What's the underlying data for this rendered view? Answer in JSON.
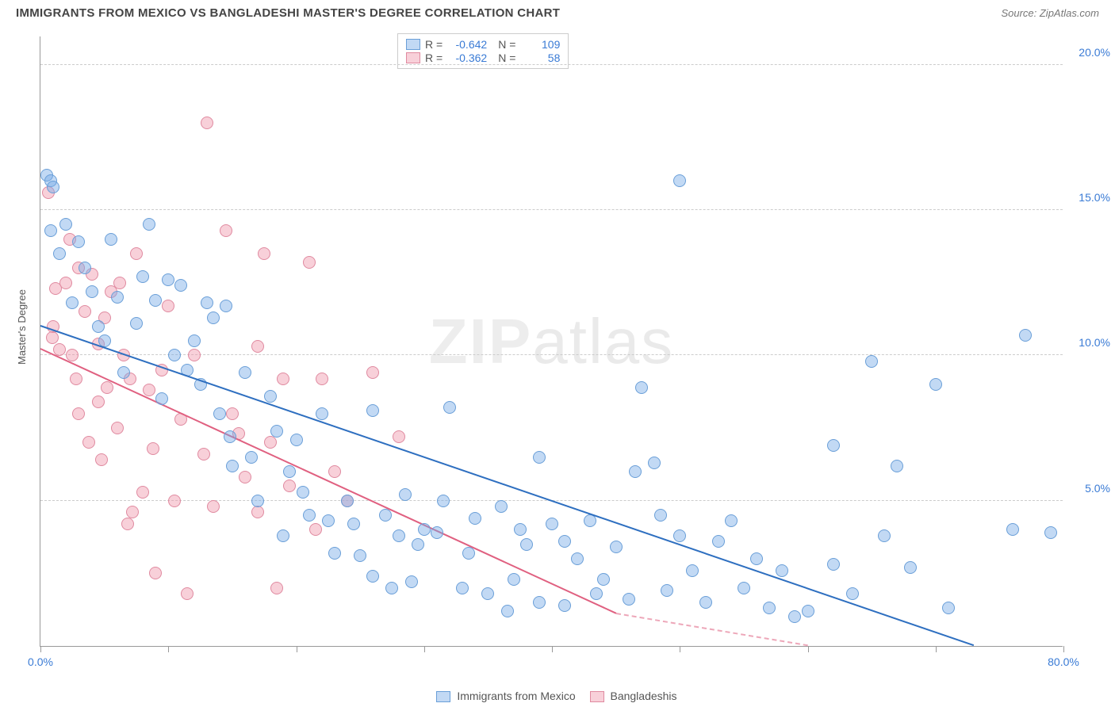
{
  "header": {
    "title": "IMMIGRANTS FROM MEXICO VS BANGLADESHI MASTER'S DEGREE CORRELATION CHART",
    "source_prefix": "Source: ",
    "source_name": "ZipAtlas.com"
  },
  "watermark": {
    "bold": "ZIP",
    "light": "atlas"
  },
  "axes": {
    "ylabel": "Master's Degree",
    "xlim": [
      0,
      80
    ],
    "ylim": [
      0,
      21
    ],
    "xtick_positions": [
      0,
      10,
      20,
      30,
      40,
      50,
      60,
      70,
      80
    ],
    "xtick_labels": {
      "0": "0.0%",
      "80": "80.0%"
    },
    "ytick_positions": [
      5,
      10,
      15,
      20
    ],
    "ytick_labels": {
      "5": "5.0%",
      "10": "10.0%",
      "15": "15.0%",
      "20": "20.0%"
    },
    "grid_color": "#cccccc",
    "tick_label_color": "#3a7bd5",
    "axis_label_color": "#555555"
  },
  "series": {
    "mexico": {
      "label": "Immigrants from Mexico",
      "fill": "rgba(120,170,230,0.45)",
      "stroke": "#6a9fd8",
      "line_color": "#2e6fc0",
      "marker_r": 8,
      "stats": {
        "R_label": "R =",
        "R": "-0.642",
        "N_label": "N =",
        "N": "109"
      },
      "trend": {
        "x1": 0,
        "y1": 11.0,
        "x2": 73,
        "y2": 0
      },
      "points": [
        [
          0.5,
          16.2
        ],
        [
          0.8,
          16.0
        ],
        [
          1.0,
          15.8
        ],
        [
          0.8,
          14.3
        ],
        [
          2.0,
          14.5
        ],
        [
          3.0,
          13.9
        ],
        [
          8.5,
          14.5
        ],
        [
          10.0,
          12.6
        ],
        [
          11.0,
          12.4
        ],
        [
          9.0,
          11.9
        ],
        [
          8.0,
          12.7
        ],
        [
          4.5,
          11.0
        ],
        [
          7.5,
          11.1
        ],
        [
          13.0,
          11.8
        ],
        [
          13.5,
          11.3
        ],
        [
          14.5,
          11.7
        ],
        [
          12.0,
          10.5
        ],
        [
          16.0,
          9.4
        ],
        [
          50.0,
          16.0
        ],
        [
          77.0,
          10.7
        ],
        [
          65.0,
          9.8
        ],
        [
          70.0,
          9.0
        ],
        [
          62.0,
          6.9
        ],
        [
          67.0,
          6.2
        ],
        [
          32.0,
          8.2
        ],
        [
          26.0,
          8.1
        ],
        [
          22.0,
          8.0
        ],
        [
          20.0,
          7.1
        ],
        [
          18.5,
          7.4
        ],
        [
          14.0,
          8.0
        ],
        [
          48.0,
          6.3
        ],
        [
          47.0,
          8.9
        ],
        [
          39.0,
          6.5
        ],
        [
          41.0,
          3.6
        ],
        [
          45.0,
          3.4
        ],
        [
          50.0,
          3.8
        ],
        [
          53.0,
          3.6
        ],
        [
          55.0,
          2.0
        ],
        [
          58.0,
          2.6
        ],
        [
          60.0,
          1.2
        ],
        [
          62.0,
          2.8
        ],
        [
          68.0,
          2.7
        ],
        [
          71.0,
          1.3
        ],
        [
          76.0,
          4.0
        ],
        [
          79.0,
          3.9
        ],
        [
          37.0,
          2.3
        ],
        [
          35.0,
          1.8
        ],
        [
          33.0,
          2.0
        ],
        [
          30.0,
          4.0
        ],
        [
          28.0,
          3.8
        ],
        [
          27.0,
          4.5
        ],
        [
          25.0,
          3.1
        ],
        [
          23.0,
          3.2
        ],
        [
          26.0,
          2.4
        ],
        [
          29.0,
          2.2
        ],
        [
          31.0,
          3.9
        ],
        [
          34.0,
          4.4
        ],
        [
          36.0,
          4.8
        ],
        [
          21.0,
          4.5
        ],
        [
          19.0,
          3.8
        ],
        [
          24.0,
          5.0
        ],
        [
          24.5,
          4.2
        ],
        [
          17.0,
          5.0
        ],
        [
          15.0,
          6.2
        ],
        [
          44.0,
          2.3
        ],
        [
          46.0,
          1.6
        ],
        [
          49.0,
          1.9
        ],
        [
          52.0,
          1.5
        ],
        [
          41.0,
          1.4
        ],
        [
          39.0,
          1.5
        ],
        [
          36.5,
          1.2
        ],
        [
          43.0,
          4.3
        ],
        [
          10.5,
          10.0
        ],
        [
          6.0,
          12.0
        ],
        [
          3.5,
          13.0
        ],
        [
          5.0,
          10.5
        ],
        [
          12.5,
          9.0
        ],
        [
          6.5,
          9.4
        ],
        [
          9.5,
          8.5
        ],
        [
          11.5,
          9.5
        ],
        [
          18.0,
          8.6
        ],
        [
          20.5,
          5.3
        ],
        [
          22.5,
          4.3
        ],
        [
          28.5,
          5.2
        ],
        [
          31.5,
          5.0
        ],
        [
          33.5,
          3.2
        ],
        [
          38.0,
          3.5
        ],
        [
          40.0,
          4.2
        ],
        [
          42.0,
          3.0
        ],
        [
          48.5,
          4.5
        ],
        [
          51.0,
          2.6
        ],
        [
          54.0,
          4.3
        ],
        [
          56.0,
          3.0
        ],
        [
          57.0,
          1.3
        ],
        [
          59.0,
          1.0
        ],
        [
          46.5,
          6.0
        ],
        [
          43.5,
          1.8
        ],
        [
          37.5,
          4.0
        ],
        [
          29.5,
          3.5
        ],
        [
          27.5,
          2.0
        ],
        [
          5.5,
          14.0
        ],
        [
          2.5,
          11.8
        ],
        [
          1.5,
          13.5
        ],
        [
          4.0,
          12.2
        ],
        [
          63.5,
          1.8
        ],
        [
          66.0,
          3.8
        ],
        [
          14.8,
          7.2
        ],
        [
          16.5,
          6.5
        ],
        [
          19.5,
          6.0
        ]
      ]
    },
    "bangla": {
      "label": "Bangladeshis",
      "fill": "rgba(240,150,170,0.45)",
      "stroke": "#e08aa0",
      "line_color": "#e06080",
      "marker_r": 8,
      "stats": {
        "R_label": "R =",
        "R": "-0.362",
        "N_label": "N =",
        "N": "58"
      },
      "trend": {
        "x1": 0,
        "y1": 10.2,
        "x2": 45,
        "y2": 1.1
      },
      "trend_ext": {
        "x1": 45,
        "y1": 1.1,
        "x2": 60,
        "y2": 0
      },
      "points": [
        [
          0.6,
          15.6
        ],
        [
          13.0,
          18.0
        ],
        [
          3.0,
          13.0
        ],
        [
          4.0,
          12.8
        ],
        [
          5.5,
          12.2
        ],
        [
          2.0,
          12.5
        ],
        [
          3.5,
          11.5
        ],
        [
          5.0,
          11.3
        ],
        [
          4.5,
          10.4
        ],
        [
          6.5,
          10.0
        ],
        [
          2.5,
          10.0
        ],
        [
          7.5,
          13.5
        ],
        [
          14.5,
          14.3
        ],
        [
          17.5,
          13.5
        ],
        [
          21.0,
          13.2
        ],
        [
          10.0,
          11.7
        ],
        [
          17.0,
          10.3
        ],
        [
          12.0,
          10.0
        ],
        [
          19.0,
          9.2
        ],
        [
          22.0,
          9.2
        ],
        [
          15.0,
          8.0
        ],
        [
          15.5,
          7.3
        ],
        [
          18.0,
          7.0
        ],
        [
          23.0,
          6.0
        ],
        [
          28.0,
          7.2
        ],
        [
          26.0,
          9.4
        ],
        [
          17.0,
          4.6
        ],
        [
          13.5,
          4.8
        ],
        [
          10.5,
          5.0
        ],
        [
          8.0,
          5.3
        ],
        [
          6.0,
          7.5
        ],
        [
          3.0,
          8.0
        ],
        [
          4.5,
          8.4
        ],
        [
          2.8,
          9.2
        ],
        [
          8.5,
          8.8
        ],
        [
          11.0,
          7.8
        ],
        [
          5.2,
          8.9
        ],
        [
          6.8,
          4.2
        ],
        [
          7.2,
          4.6
        ],
        [
          9.0,
          2.5
        ],
        [
          11.5,
          1.8
        ],
        [
          18.5,
          2.0
        ],
        [
          21.5,
          4.0
        ],
        [
          24.0,
          5.0
        ],
        [
          1.0,
          11.0
        ],
        [
          1.5,
          10.2
        ],
        [
          3.8,
          7.0
        ],
        [
          4.8,
          6.4
        ],
        [
          2.3,
          14.0
        ],
        [
          1.2,
          12.3
        ],
        [
          0.9,
          10.6
        ],
        [
          6.2,
          12.5
        ],
        [
          8.8,
          6.8
        ],
        [
          12.8,
          6.6
        ],
        [
          16.0,
          5.8
        ],
        [
          19.5,
          5.5
        ],
        [
          9.5,
          9.5
        ],
        [
          7.0,
          9.2
        ]
      ]
    }
  },
  "style": {
    "background_color": "#ffffff",
    "title_color": "#444444",
    "title_fontsize": 15,
    "source_color": "#777777",
    "legend_border": "#cccccc"
  }
}
